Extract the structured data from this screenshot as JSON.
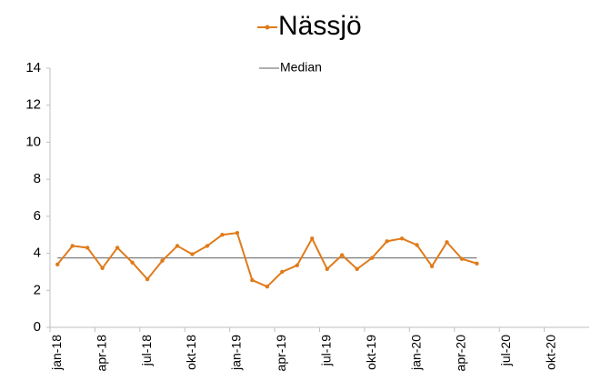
{
  "chart_data": {
    "type": "line",
    "categories": [
      "jan-18",
      null,
      null,
      "apr-18",
      null,
      null,
      "jul-18",
      null,
      null,
      "okt-18",
      null,
      null,
      "jan-19",
      null,
      null,
      "apr-19",
      null,
      null,
      "jul-19",
      null,
      null,
      "okt-19",
      null,
      null,
      "jan-20",
      null,
      null,
      "apr-20",
      null,
      null,
      "jul-20",
      null,
      null,
      "okt-20",
      null,
      null
    ],
    "series": [
      {
        "name": "Nässjö",
        "color": "#e07b1a",
        "markers": true,
        "values": [
          3.4,
          4.4,
          4.3,
          3.2,
          4.3,
          3.5,
          2.6,
          3.6,
          4.4,
          3.95,
          4.4,
          5.0,
          5.1,
          2.55,
          2.2,
          3.0,
          3.35,
          4.8,
          3.15,
          3.9,
          3.15,
          3.75,
          4.65,
          4.8,
          4.45,
          3.3,
          4.6,
          3.7,
          3.45,
          null,
          null,
          null,
          null,
          null,
          null,
          null
        ]
      },
      {
        "name": "Median",
        "color": "#7f7f7f",
        "markers": false,
        "values": [
          3.75,
          3.75,
          3.75,
          3.75,
          3.75,
          3.75,
          3.75,
          3.75,
          3.75,
          3.75,
          3.75,
          3.75,
          3.75,
          3.75,
          3.75,
          3.75,
          3.75,
          3.75,
          3.75,
          3.75,
          3.75,
          3.75,
          3.75,
          3.75,
          3.75,
          3.75,
          3.75,
          3.75,
          3.75,
          null,
          null,
          null,
          null,
          null,
          null,
          null
        ]
      }
    ],
    "ylim": [
      0,
      14
    ],
    "yticks": [
      0,
      2,
      4,
      6,
      8,
      10,
      12,
      14
    ],
    "grid": false
  }
}
